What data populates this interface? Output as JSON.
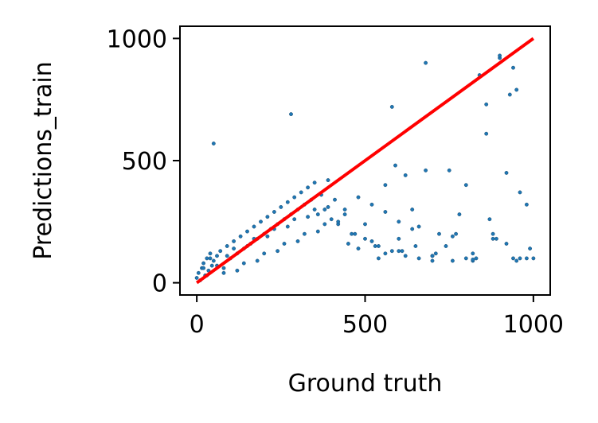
{
  "chart_data": {
    "type": "scatter",
    "title": "",
    "xlabel": "Ground truth",
    "ylabel": "Predictions_train",
    "xlim": [
      -50,
      1050
    ],
    "ylim": [
      -50,
      1050
    ],
    "xticks": [
      0,
      500,
      1000
    ],
    "yticks": [
      0,
      500,
      1000
    ],
    "xtick_labels": [
      "0",
      "500",
      "1000"
    ],
    "ytick_labels": [
      "0",
      "500",
      "1000"
    ],
    "grid": false,
    "legend": "none",
    "colors": {
      "points": "#1f77b4",
      "reference_line": "#ff0000"
    },
    "series": [
      {
        "kind": "scatter",
        "x": [
          0,
          5,
          10,
          15,
          20,
          25,
          30,
          35,
          40,
          45,
          50,
          60,
          70,
          80,
          90,
          100,
          110,
          120,
          130,
          140,
          150,
          160,
          170,
          180,
          190,
          200,
          210,
          220,
          230,
          240,
          250,
          260,
          270,
          280,
          290,
          300,
          310,
          320,
          330,
          340,
          350,
          360,
          370,
          380,
          390,
          400,
          420,
          440,
          460,
          480,
          500,
          520,
          540,
          560,
          580,
          600,
          620,
          640,
          660,
          680,
          700,
          720,
          740,
          760,
          780,
          800,
          820,
          840,
          860,
          880,
          900,
          920,
          940,
          960,
          980,
          1000,
          50,
          280,
          580,
          680,
          900,
          860,
          930,
          960,
          950,
          990,
          600,
          640,
          560,
          590,
          620,
          700,
          750,
          800,
          820,
          870,
          920,
          980,
          450,
          480,
          520,
          540,
          600,
          650,
          700,
          760,
          820,
          880,
          940,
          30,
          60,
          90,
          120,
          150,
          180,
          210,
          240,
          270,
          300,
          330,
          360,
          390,
          420,
          20,
          40,
          80,
          110,
          140,
          170,
          200,
          230,
          260,
          290,
          320,
          350,
          380,
          410,
          440,
          470,
          500,
          530,
          560,
          610,
          660,
          710,
          770,
          830,
          890,
          950
        ],
        "y": [
          20,
          40,
          10,
          60,
          80,
          30,
          100,
          50,
          120,
          70,
          90,
          110,
          130,
          60,
          150,
          100,
          170,
          120,
          190,
          140,
          210,
          160,
          230,
          180,
          250,
          200,
          270,
          220,
          290,
          240,
          310,
          260,
          330,
          280,
          350,
          300,
          370,
          320,
          390,
          340,
          410,
          280,
          360,
          300,
          420,
          260,
          240,
          300,
          200,
          350,
          180,
          320,
          150,
          400,
          130,
          250,
          110,
          300,
          100,
          460,
          90,
          200,
          150,
          90,
          280,
          400,
          90,
          850,
          610,
          200,
          920,
          160,
          880,
          100,
          320,
          100,
          570,
          690,
          720,
          900,
          930,
          730,
          770,
          370,
          790,
          140,
          180,
          220,
          120,
          480,
          440,
          110,
          460,
          100,
          95,
          260,
          450,
          100,
          160,
          140,
          170,
          100,
          130,
          150,
          110,
          190,
          120,
          180,
          100,
          30,
          70,
          110,
          50,
          150,
          90,
          190,
          130,
          230,
          170,
          270,
          210,
          310,
          250,
          60,
          100,
          40,
          140,
          80,
          180,
          120,
          220,
          160,
          260,
          200,
          300,
          240,
          340,
          280,
          200,
          240,
          150,
          290,
          130,
          230,
          120,
          200,
          100,
          180,
          90
        ]
      },
      {
        "kind": "line",
        "x": [
          0,
          1000
        ],
        "y": [
          0,
          1000
        ]
      }
    ]
  }
}
